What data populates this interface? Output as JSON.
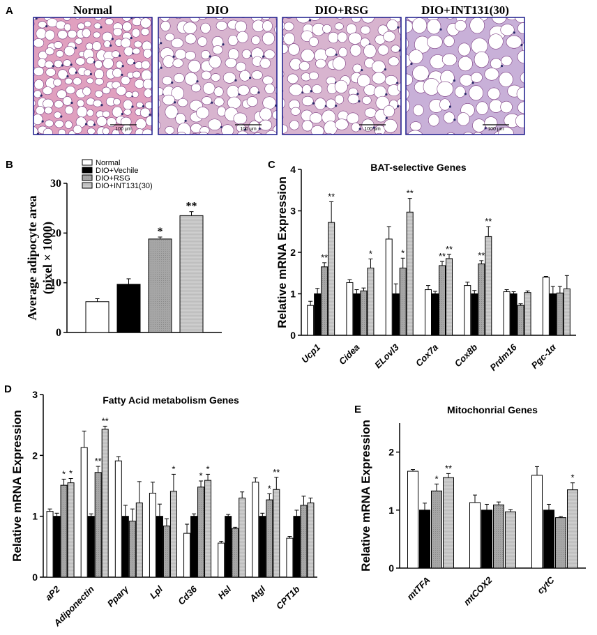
{
  "panel_a": {
    "label": "A",
    "scale_bar_text": "100 μm",
    "images": [
      {
        "title": "Normal",
        "tissue": "dense"
      },
      {
        "title": "DIO",
        "tissue": "large"
      },
      {
        "title": "DIO+RSG",
        "tissue": "large"
      },
      {
        "title": "DIO+INT131(30)",
        "tissue": "pale"
      }
    ]
  },
  "colors": {
    "normal": "#ffffff",
    "dio": "#000000",
    "rsg": "#a6a6a6",
    "int131": "#c8c8c8",
    "tissue_pink": "#e0a0bf",
    "tissue_purple": "#c8b0d8",
    "frame": "#1a1a8c"
  },
  "chart_data": [
    {
      "id": "B",
      "label": "B",
      "type": "bar",
      "title": "",
      "ylabel_line1": "Average adipocyte area",
      "ylabel_line2": "(pixel × 1000)",
      "ylim": [
        0,
        30
      ],
      "yticks": [
        0,
        10,
        20,
        30
      ],
      "legend": [
        "Normal",
        "DIO+Vechile",
        "DIO+RSG",
        "DIO+INT131(30)"
      ],
      "legend_position": "top-left",
      "categories": [
        ""
      ],
      "series": [
        {
          "name": "Normal",
          "values": [
            6.2
          ],
          "errors": [
            0.6
          ],
          "sig": [
            ""
          ]
        },
        {
          "name": "DIO+Vechile",
          "values": [
            9.7
          ],
          "errors": [
            1.1
          ],
          "sig": [
            ""
          ]
        },
        {
          "name": "DIO+RSG",
          "values": [
            18.8
          ],
          "errors": [
            0.4
          ],
          "sig": [
            "*"
          ]
        },
        {
          "name": "DIO+INT131(30)",
          "values": [
            23.5
          ],
          "errors": [
            0.8
          ],
          "sig": [
            "**"
          ]
        }
      ]
    },
    {
      "id": "C",
      "label": "C",
      "type": "bar",
      "title": "BAT-selective Genes",
      "ylabel": "Relative mRNA Expression",
      "ylim": [
        0,
        4
      ],
      "yticks": [
        0,
        1,
        2,
        3,
        4
      ],
      "categories": [
        "Ucp1",
        "Cidea",
        "ELovl3",
        "Cox7a",
        "Cox8b",
        "Prdm16",
        "Pgc-1α"
      ],
      "series": [
        {
          "name": "Normal",
          "values": [
            0.72,
            1.27,
            2.32,
            1.1,
            1.2,
            1.05,
            1.4
          ],
          "errors": [
            0.1,
            0.07,
            0.3,
            0.1,
            0.08,
            0.05,
            0.02
          ],
          "sig": [
            "",
            "",
            "",
            "",
            "",
            "",
            ""
          ]
        },
        {
          "name": "DIO+Vechile",
          "values": [
            1.0,
            1.0,
            1.0,
            1.0,
            1.0,
            1.0,
            1.0
          ],
          "errors": [
            0.13,
            0.1,
            0.24,
            0.06,
            0.08,
            0.05,
            0.18
          ],
          "sig": [
            "",
            "",
            "",
            "",
            "",
            "",
            ""
          ]
        },
        {
          "name": "DIO+RSG",
          "values": [
            1.65,
            1.07,
            1.62,
            1.68,
            1.72,
            0.72,
            1.02
          ],
          "errors": [
            0.1,
            0.07,
            0.24,
            0.1,
            0.08,
            0.04,
            0.16
          ],
          "sig": [
            "**",
            "",
            "*",
            "**",
            "**",
            "",
            ""
          ]
        },
        {
          "name": "DIO+INT131(30)",
          "values": [
            2.72,
            1.62,
            2.97,
            1.85,
            2.38,
            1.03,
            1.12
          ],
          "errors": [
            0.5,
            0.22,
            0.33,
            0.1,
            0.24,
            0.04,
            0.32
          ],
          "sig": [
            "**",
            "*",
            "**",
            "**",
            "**",
            "",
            ""
          ]
        }
      ]
    },
    {
      "id": "D",
      "label": "D",
      "type": "bar",
      "title": "Fatty Acid metabolism Genes",
      "ylabel": "Relative mRNA Expression",
      "ylim": [
        0,
        3
      ],
      "yticks": [
        0,
        1,
        2,
        3
      ],
      "categories": [
        "aP2",
        "Adiponectin",
        "Pparγ",
        "Lpl",
        "Cd36",
        "Hsl",
        "Atgl",
        "CPT1b"
      ],
      "series": [
        {
          "name": "Normal",
          "values": [
            1.08,
            2.13,
            1.91,
            1.38,
            0.72,
            0.56,
            1.56,
            0.64
          ],
          "errors": [
            0.04,
            0.27,
            0.07,
            0.18,
            0.15,
            0.03,
            0.07,
            0.03
          ],
          "sig": [
            "",
            "",
            "",
            "",
            "",
            "",
            "",
            ""
          ]
        },
        {
          "name": "DIO+Vechile",
          "values": [
            1.0,
            1.0,
            1.0,
            1.0,
            1.0,
            1.0,
            1.0,
            1.0
          ],
          "errors": [
            0.05,
            0.04,
            0.18,
            0.2,
            0.04,
            0.03,
            0.05,
            0.1
          ],
          "sig": [
            "",
            "",
            "",
            "",
            "",
            "",
            "",
            ""
          ]
        },
        {
          "name": "DIO+RSG",
          "values": [
            1.51,
            1.72,
            0.92,
            0.84,
            1.48,
            0.8,
            1.27,
            1.18
          ],
          "errors": [
            0.1,
            0.1,
            0.2,
            0.12,
            0.1,
            0.02,
            0.1,
            0.15
          ],
          "sig": [
            "*",
            "**",
            "",
            "",
            "*",
            "",
            "*",
            ""
          ]
        },
        {
          "name": "DIO+INT131(30)",
          "values": [
            1.55,
            2.43,
            1.22,
            1.41,
            1.59,
            1.3,
            1.44,
            1.22
          ],
          "errors": [
            0.07,
            0.05,
            0.35,
            0.28,
            0.1,
            0.1,
            0.2,
            0.08
          ],
          "sig": [
            "*",
            "**",
            "",
            "*",
            "*",
            "",
            "**",
            ""
          ]
        }
      ]
    },
    {
      "id": "E",
      "label": "E",
      "type": "bar",
      "title": "Mitochonrial  Genes",
      "ylabel": "Relative mRNA Expression",
      "ylim": [
        0,
        2.5
      ],
      "yticks": [
        0,
        1,
        2
      ],
      "categories": [
        "mtTFA",
        "mtCOX2",
        "cytC"
      ],
      "series": [
        {
          "name": "Normal",
          "values": [
            1.67,
            1.13,
            1.6
          ],
          "errors": [
            0.03,
            0.13,
            0.15
          ],
          "sig": [
            "",
            "",
            ""
          ]
        },
        {
          "name": "DIO+Vechile",
          "values": [
            1.0,
            1.0,
            1.0
          ],
          "errors": [
            0.12,
            0.1,
            0.1
          ],
          "sig": [
            "",
            "",
            ""
          ]
        },
        {
          "name": "DIO+RSG",
          "values": [
            1.33,
            1.09,
            0.87
          ],
          "errors": [
            0.12,
            0.05,
            0.02
          ],
          "sig": [
            "*",
            "",
            ""
          ]
        },
        {
          "name": "DIO+INT131(30)",
          "values": [
            1.56,
            0.97,
            1.35
          ],
          "errors": [
            0.07,
            0.04,
            0.12
          ],
          "sig": [
            "**",
            "",
            "*"
          ]
        }
      ]
    }
  ]
}
